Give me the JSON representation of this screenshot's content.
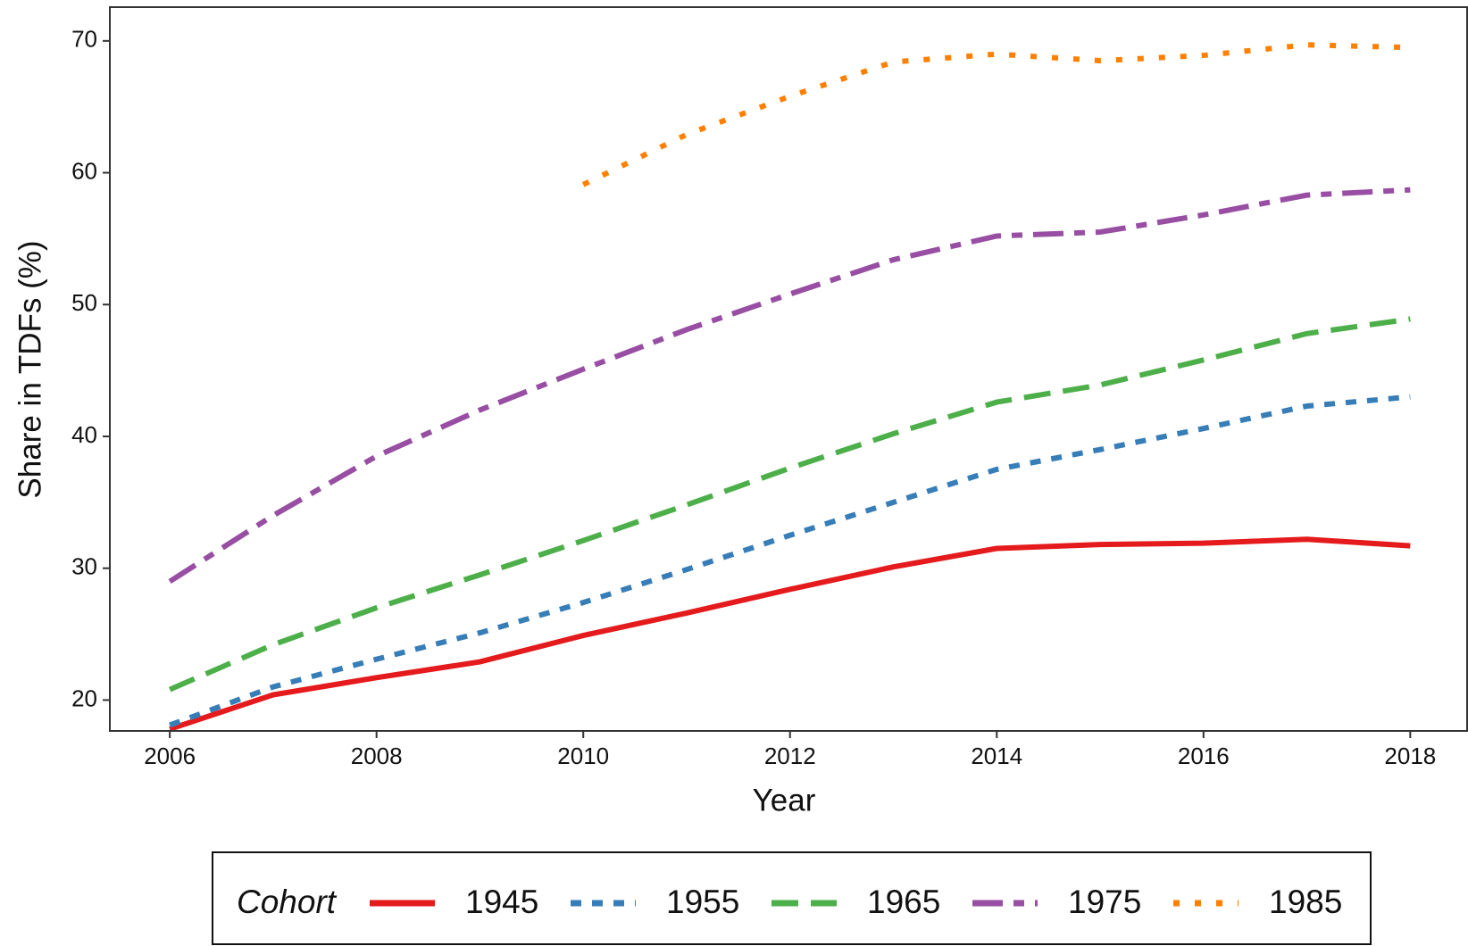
{
  "chart_data": {
    "type": "line",
    "x_label": "Year",
    "y_label": "Share in TDFs (%)",
    "x": [
      2006,
      2007,
      2008,
      2009,
      2010,
      2011,
      2012,
      2013,
      2014,
      2015,
      2016,
      2017,
      2018
    ],
    "xlim": [
      2005.42,
      2018.55
    ],
    "xticks": [
      2006,
      2008,
      2010,
      2012,
      2014,
      2016,
      2018
    ],
    "ylim": [
      17.66,
      72.56
    ],
    "yticks": [
      20,
      30,
      40,
      50,
      60,
      70
    ],
    "grid": false,
    "legend_title": "Cohort",
    "legend_position": "bottom",
    "series": [
      {
        "name": "1945",
        "color": "#e41a1c",
        "linestyle": "solid",
        "values": [
          17.8,
          20.4,
          21.7,
          22.9,
          24.9,
          26.6,
          28.4,
          30.1,
          31.5,
          31.8,
          31.9,
          32.2,
          31.7
        ]
      },
      {
        "name": "1955",
        "color": "#377eb8",
        "linestyle": "dashed",
        "values": [
          18.1,
          21.0,
          23.1,
          25.1,
          27.4,
          29.9,
          32.5,
          35.0,
          37.5,
          39.0,
          40.6,
          42.3,
          43.0
        ]
      },
      {
        "name": "1965",
        "color": "#4daf4a",
        "linestyle": "longdash",
        "values": [
          20.8,
          24.2,
          27.0,
          29.5,
          32.1,
          34.8,
          37.6,
          40.2,
          42.6,
          43.9,
          45.8,
          47.8,
          48.9
        ]
      },
      {
        "name": "1975",
        "color": "#984ea3",
        "linestyle": "twodash",
        "values": [
          29.0,
          34.0,
          38.5,
          42.0,
          45.1,
          48.1,
          50.8,
          53.4,
          55.2,
          55.5,
          56.8,
          58.3,
          58.7
        ]
      },
      {
        "name": "1985",
        "color": "#ff7f00",
        "linestyle": "dotted",
        "values": [
          null,
          null,
          null,
          null,
          59.1,
          62.9,
          65.8,
          68.4,
          69.0,
          68.5,
          68.9,
          69.7,
          69.5
        ]
      }
    ]
  }
}
